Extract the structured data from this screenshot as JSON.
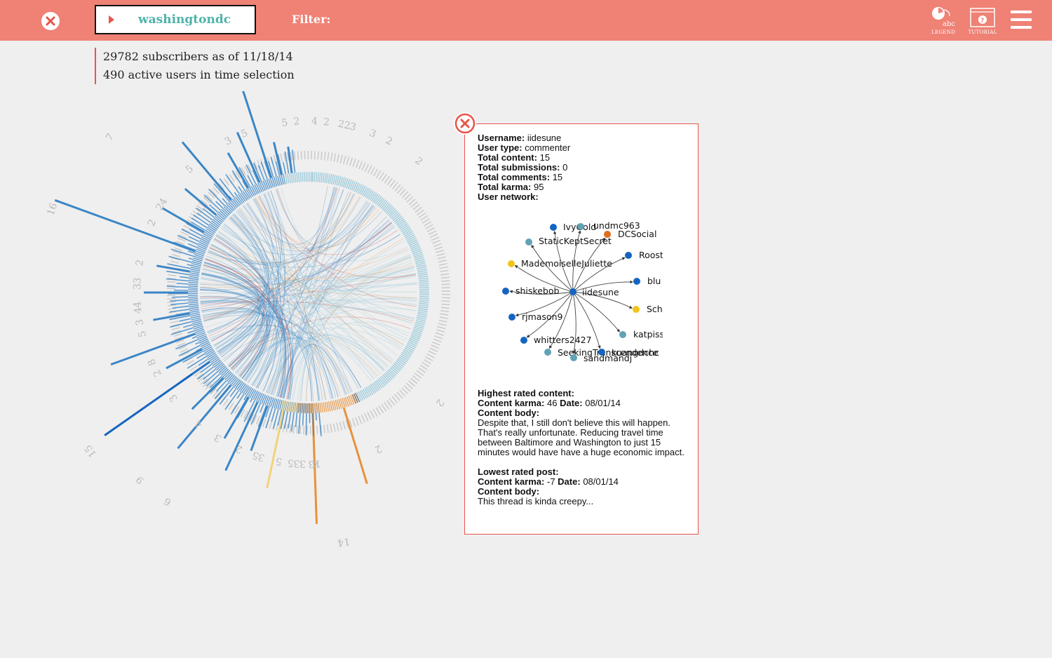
{
  "header": {
    "subreddit": "washingtondc",
    "filter_label": "Filter:",
    "legend_label": "LEGEND",
    "legend_glyph": "abc",
    "tutorial_label": "TUTORIAL",
    "tutorial_glyph": "?",
    "colors": {
      "bar": "#ef8175",
      "accent": "#e9544a",
      "subreddit_text": "#4fb3a9"
    }
  },
  "stats": {
    "subscribers": "29782 subscribers as of 11/18/14",
    "active_users": "490 active users in time selection"
  },
  "chord": {
    "spike_labels": [
      "9",
      "5",
      "4",
      "11",
      "5",
      "2",
      "2",
      "3",
      "16",
      "5",
      "3",
      "4",
      "3",
      "4",
      "5",
      "2",
      "3",
      "8",
      "4",
      "3",
      "2",
      "5",
      "5",
      "15",
      "5",
      "3",
      "4",
      "3",
      "2",
      "2",
      "2",
      "3",
      "4",
      "3",
      "7",
      "9",
      "6",
      "14",
      "13",
      "3",
      "22",
      "3",
      "2",
      "2",
      "2",
      "2"
    ],
    "colors": {
      "blue": "#3b86c6",
      "light_blue": "#8cc4d8",
      "orange": "#e8913a",
      "yellow": "#f3d27a",
      "red": "#d0463c",
      "gray": "#cccccc"
    }
  },
  "user_popup": {
    "username_label": "Username:",
    "username": "iidesune",
    "user_type_label": "User type:",
    "user_type": "commenter",
    "total_content_label": "Total content:",
    "total_content": "15",
    "total_submissions_label": "Total submissions:",
    "total_submissions": "0",
    "total_comments_label": "Total comments:",
    "total_comments": "15",
    "total_karma_label": "Total karma:",
    "total_karma": "95",
    "user_network_label": "User network:",
    "network": {
      "center": "iidesune",
      "nodes": [
        {
          "name": "IvyGold",
          "color": "#1565c0"
        },
        {
          "name": "undmc963",
          "color": "#5fa3b5"
        },
        {
          "name": "DCSocial",
          "color": "#e06d1b"
        },
        {
          "name": "StaticKeptSecret",
          "color": "#5fa3b5"
        },
        {
          "name": "Roost",
          "color": "#1565c0"
        },
        {
          "name": "MademoiselleJuliette",
          "color": "#f0c419"
        },
        {
          "name": "blu",
          "color": "#1565c0"
        },
        {
          "name": "shiskebob",
          "color": "#1565c0"
        },
        {
          "name": "Sch",
          "color": "#f0c419"
        },
        {
          "name": "rjmason9",
          "color": "#1565c0"
        },
        {
          "name": "katpiss",
          "color": "#5fa3b5"
        },
        {
          "name": "whitters2427",
          "color": "#1565c0"
        },
        {
          "name": "SeekingTranscendence",
          "color": "#5fa3b5"
        },
        {
          "name": "sandmandj",
          "color": "#5fa3b5"
        },
        {
          "name": "kuangdchc",
          "color": "#1565c0"
        }
      ]
    },
    "highest_label": "Highest rated content:",
    "highest_karma_label": "Content karma:",
    "highest_karma": "46",
    "highest_date_label": "Date:",
    "highest_date": "08/01/14",
    "highest_body_label": "Content body:",
    "highest_body": "Despite that, I still don't believe this will happen. That's really unfortunate. Reducing travel time between Baltimore and Washington to just 15 minutes would have have a huge economic impact.",
    "lowest_label": "Lowest rated post:",
    "lowest_karma_label": "Content karma:",
    "lowest_karma": "-7",
    "lowest_date_label": "Date:",
    "lowest_date": "08/01/14",
    "lowest_body_label": "Content body:",
    "lowest_body": "This thread is kinda creepy..."
  }
}
